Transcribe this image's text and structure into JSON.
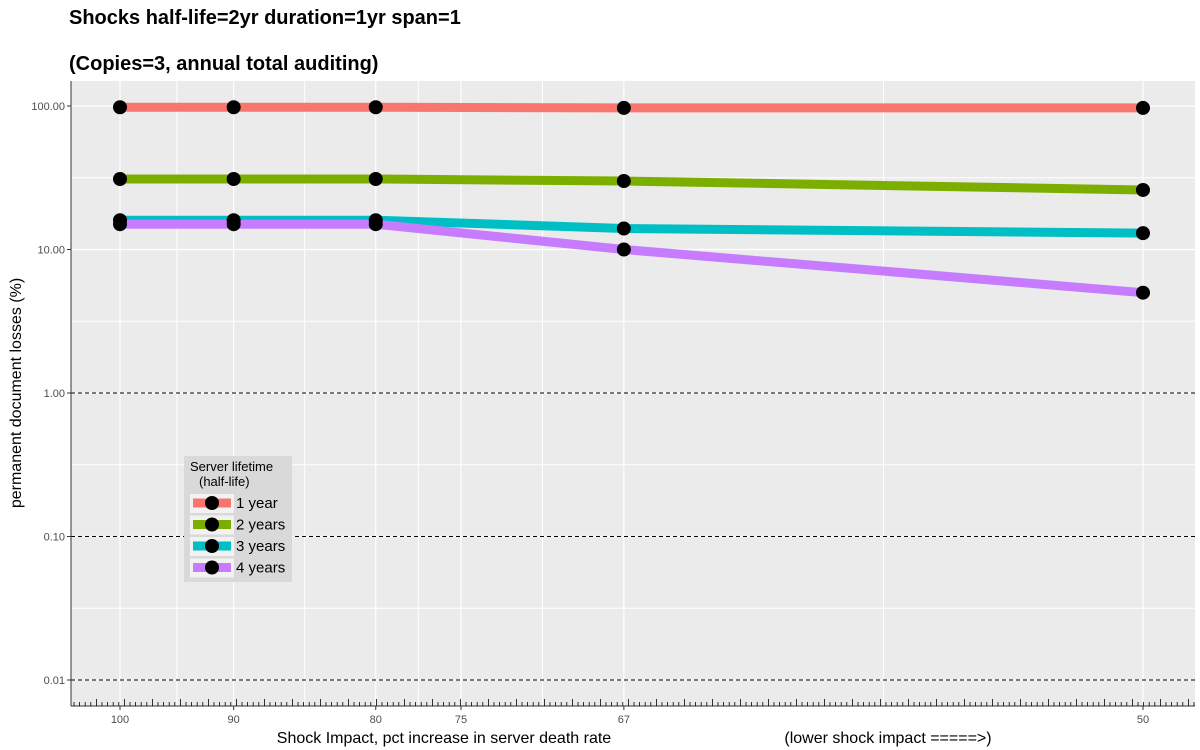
{
  "chart_data": {
    "type": "line",
    "title": "Shocks  half-life=2yr duration=1yr span=1",
    "subtitle": "(Copies=3, annual total auditing)",
    "xlabel": "Shock Impact, pct increase in server death rate",
    "xlabel_note": "(lower shock impact =====>)",
    "ylabel": "permanent document losses (%)",
    "y_scale": "log10",
    "ylim": [
      0.006,
      150
    ],
    "x_reciprocal": true,
    "x_ticks": [
      "100",
      "90",
      "80",
      "75",
      "67",
      "50"
    ],
    "x_tick_values": [
      100,
      90,
      80,
      75,
      67,
      50
    ],
    "y_ticks": [
      "0.01",
      "0.10",
      "1.00",
      "10.00",
      "100.00"
    ],
    "y_tick_values": [
      0.01,
      0.1,
      1,
      10,
      100
    ],
    "x": [
      100,
      90,
      80,
      67,
      50
    ],
    "series": [
      {
        "name": "1 year",
        "color": "#F8766D",
        "values": [
          98,
          98,
          98,
          97,
          97
        ]
      },
      {
        "name": "2 years",
        "color": "#7CAE00",
        "values": [
          31,
          31,
          31,
          30,
          26
        ]
      },
      {
        "name": "3 years",
        "color": "#00BFC4",
        "values": [
          16,
          16,
          16,
          14,
          13
        ]
      },
      {
        "name": "4 years",
        "color": "#C77CFF",
        "values": [
          15,
          15,
          15,
          10,
          5
        ]
      }
    ],
    "legend": {
      "title_line1": "Server lifetime",
      "title_line2": "(half-life)",
      "position": "lower-left"
    },
    "panel_background": "#EBEBEB",
    "grid": true,
    "dashed_reference_lines": [
      0.01,
      0.1,
      1
    ]
  }
}
